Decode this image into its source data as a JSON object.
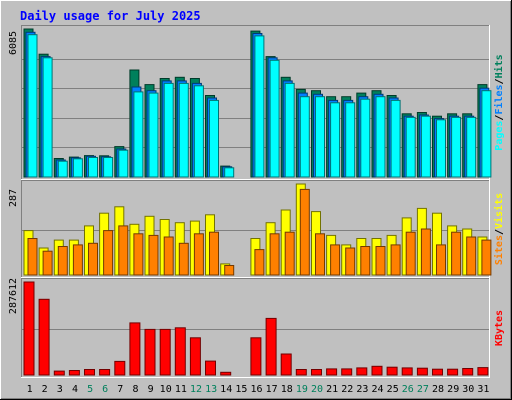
{
  "chart_data": {
    "type": "bar",
    "title": "Daily usage for July 2025",
    "categories": [
      "1",
      "2",
      "3",
      "4",
      "5",
      "6",
      "7",
      "8",
      "9",
      "10",
      "11",
      "12",
      "13",
      "14",
      "15",
      "16",
      "17",
      "18",
      "19",
      "20",
      "21",
      "22",
      "23",
      "24",
      "25",
      "26",
      "27",
      "28",
      "29",
      "30",
      "31"
    ],
    "weekend_days": [
      "5",
      "6",
      "12",
      "13",
      "19",
      "20",
      "26",
      "27"
    ],
    "panels": [
      {
        "name": "hits-files-pages",
        "max_label": "6085",
        "ylim": [
          0,
          6085
        ],
        "legend": [
          {
            "text": "Pages",
            "color": "#00ffff"
          },
          {
            "text": "/",
            "color": "#000000"
          },
          {
            "text": "Files",
            "color": "#0080ff"
          },
          {
            "text": "/",
            "color": "#000000"
          },
          {
            "text": "Hits",
            "color": "#00805c"
          }
        ],
        "series": [
          {
            "name": "Hits",
            "color": "#00805c",
            "values": [
              6085,
              5050,
              760,
              820,
              880,
              870,
              1250,
              4400,
              3800,
              4050,
              4100,
              4050,
              3350,
              450,
              0,
              6000,
              4950,
              4100,
              3600,
              3550,
              3300,
              3300,
              3450,
              3550,
              3350,
              2600,
              2650,
              2500,
              2600,
              2600,
              3800
            ]
          },
          {
            "name": "Files",
            "color": "#0080ff",
            "values": [
              5950,
              4950,
              700,
              790,
              850,
              830,
              1150,
              3700,
              3550,
              3950,
              3950,
              3850,
              3250,
              420,
              0,
              5900,
              4900,
              3950,
              3450,
              3400,
              3150,
              3150,
              3300,
              3400,
              3250,
              2500,
              2550,
              2400,
              2500,
              2500,
              3650
            ]
          },
          {
            "name": "Pages",
            "color": "#00ffff",
            "values": [
              5850,
              4900,
              650,
              750,
              800,
              800,
              1100,
              3500,
              3450,
              3850,
              3850,
              3750,
              3150,
              380,
              0,
              5800,
              4800,
              3850,
              3300,
              3300,
              3050,
              3050,
              3200,
              3300,
              3150,
              2450,
              2500,
              2350,
              2450,
              2450,
              3550
            ]
          }
        ]
      },
      {
        "name": "visits-sites",
        "max_label": "287",
        "ylim": [
          0,
          287
        ],
        "legend": [
          {
            "text": "Sites",
            "color": "#ff8000"
          },
          {
            "text": "/",
            "color": "#000000"
          },
          {
            "text": "Visits",
            "color": "#ffff00"
          }
        ],
        "series": [
          {
            "name": "Visits",
            "color": "#ffff00",
            "values": [
              140,
              85,
              110,
              110,
              155,
              195,
              215,
              160,
              185,
              175,
              165,
              170,
              190,
              35,
              0,
              115,
              165,
              205,
              287,
              200,
              125,
              95,
              115,
              115,
              125,
              180,
              210,
              195,
              155,
              145,
              120
            ]
          },
          {
            "name": "Sites",
            "color": "#ff8000",
            "values": [
              115,
              75,
              90,
              95,
              100,
              140,
              155,
              130,
              125,
              120,
              100,
              130,
              135,
              30,
              0,
              80,
              130,
              135,
              270,
              130,
              95,
              85,
              90,
              90,
              95,
              135,
              145,
              95,
              135,
              120,
              110
            ]
          }
        ]
      },
      {
        "name": "kbytes",
        "max_label": "287612",
        "ylim": [
          0,
          287612
        ],
        "legend": [
          {
            "text": "KBytes",
            "color": "#ff0000"
          }
        ],
        "series": [
          {
            "name": "KBytes",
            "color": "#ff0000",
            "values": [
              287612,
              234000,
              12000,
              14000,
              17000,
              17000,
              42000,
              161000,
              141000,
              141000,
              146000,
              115000,
              43000,
              8500,
              0,
              115000,
              175000,
              65000,
              17000,
              17000,
              19000,
              19000,
              22000,
              27000,
              24000,
              22000,
              21000,
              18000,
              18000,
              20000,
              23000
            ]
          }
        ]
      }
    ]
  }
}
